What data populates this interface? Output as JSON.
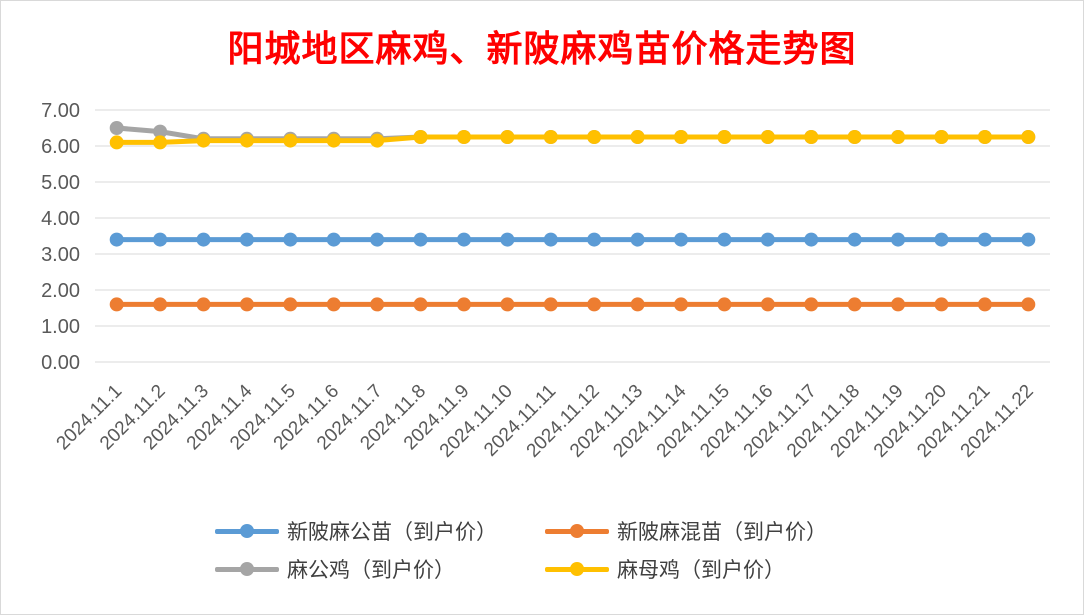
{
  "chart_data": {
    "type": "line",
    "title": "阳城地区麻鸡、新陂麻鸡苗价格走势图",
    "categories": [
      "2024.11.1",
      "2024.11.2",
      "2024.11.3",
      "2024.11.4",
      "2024.11.5",
      "2024.11.6",
      "2024.11.7",
      "2024.11.8",
      "2024.11.9",
      "2024.11.10",
      "2024.11.11",
      "2024.11.12",
      "2024.11.13",
      "2024.11.14",
      "2024.11.15",
      "2024.11.16",
      "2024.11.17",
      "2024.11.18",
      "2024.11.19",
      "2024.11.20",
      "2024.11.21",
      "2024.11.22"
    ],
    "y_ticks": [
      "0.00",
      "1.00",
      "2.00",
      "3.00",
      "4.00",
      "5.00",
      "6.00",
      "7.00"
    ],
    "ylim": [
      0,
      7
    ],
    "grid": true,
    "legend_position": "bottom",
    "series": [
      {
        "name": "新陂麻公苗（到户价）",
        "color": "#5b9bd5",
        "values": [
          3.4,
          3.4,
          3.4,
          3.4,
          3.4,
          3.4,
          3.4,
          3.4,
          3.4,
          3.4,
          3.4,
          3.4,
          3.4,
          3.4,
          3.4,
          3.4,
          3.4,
          3.4,
          3.4,
          3.4,
          3.4,
          3.4
        ]
      },
      {
        "name": "新陂麻混苗（到户价）",
        "color": "#ed7d31",
        "values": [
          1.6,
          1.6,
          1.6,
          1.6,
          1.6,
          1.6,
          1.6,
          1.6,
          1.6,
          1.6,
          1.6,
          1.6,
          1.6,
          1.6,
          1.6,
          1.6,
          1.6,
          1.6,
          1.6,
          1.6,
          1.6,
          1.6
        ]
      },
      {
        "name": "麻公鸡（到户价）",
        "color": "#a5a5a5",
        "values": [
          6.5,
          6.4,
          6.2,
          6.2,
          6.2,
          6.2,
          6.2,
          6.25,
          6.25,
          6.25,
          6.25,
          6.25,
          6.25,
          6.25,
          6.25,
          6.25,
          6.25,
          6.25,
          6.25,
          6.25,
          6.25,
          6.25
        ]
      },
      {
        "name": "麻母鸡（到户价）",
        "color": "#ffc000",
        "values": [
          6.1,
          6.1,
          6.15,
          6.15,
          6.15,
          6.15,
          6.15,
          6.25,
          6.25,
          6.25,
          6.25,
          6.25,
          6.25,
          6.25,
          6.25,
          6.25,
          6.25,
          6.25,
          6.25,
          6.25,
          6.25,
          6.25
        ]
      }
    ]
  }
}
